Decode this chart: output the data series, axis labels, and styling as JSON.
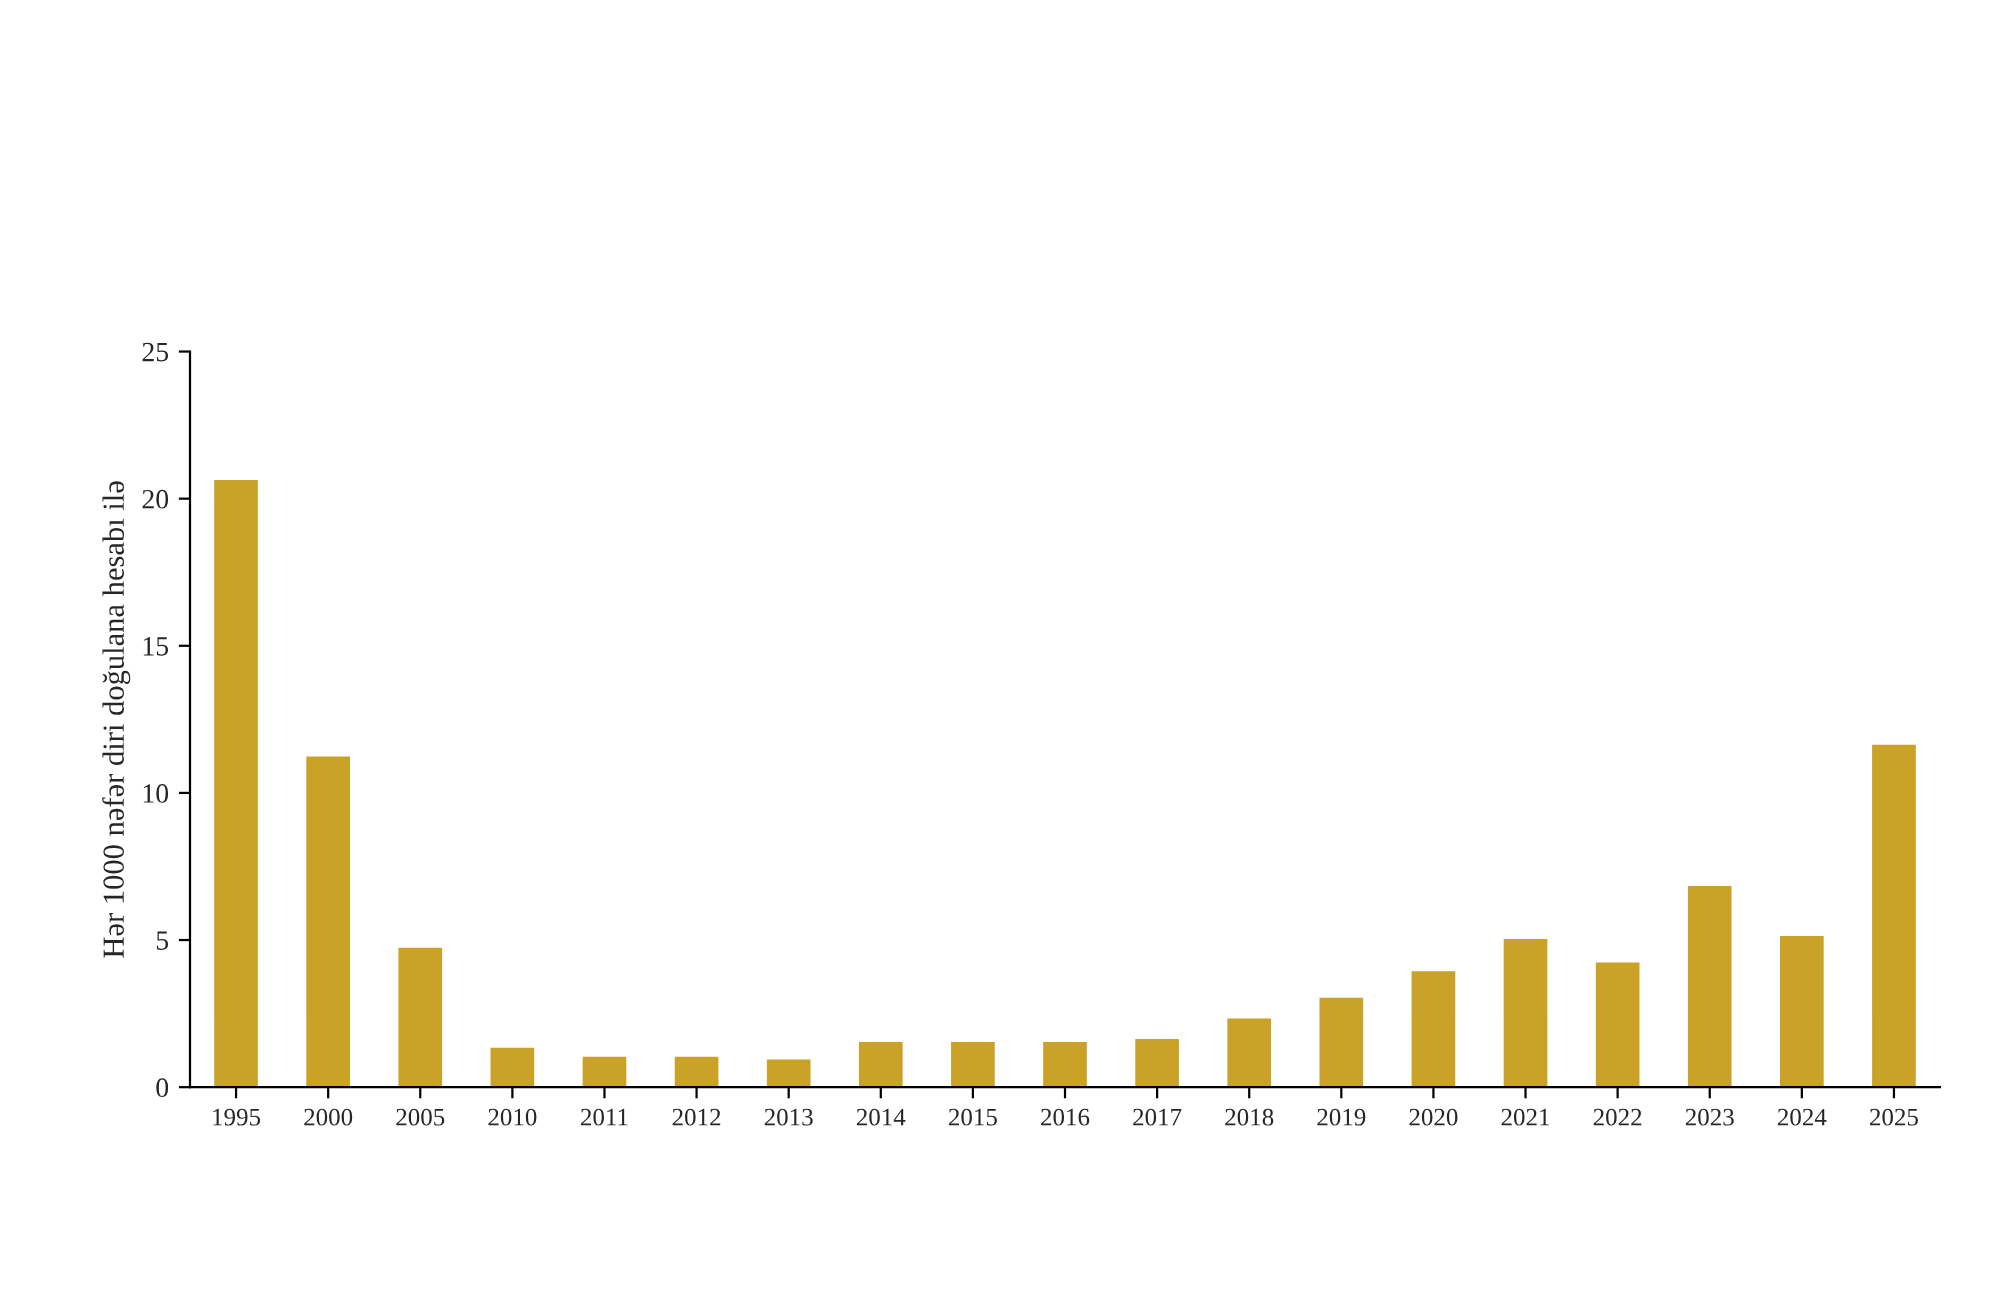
{
  "chart_data": {
    "type": "bar",
    "ylabel": "Hər 1000 nəfər diri doğulana hesabı ilə",
    "categories": [
      "1995",
      "2000",
      "2005",
      "2010",
      "2011",
      "2012",
      "2013",
      "2014",
      "2015",
      "2016",
      "2017",
      "2018",
      "2019",
      "2020",
      "2021",
      "2022",
      "2023",
      "2024",
      "2025"
    ],
    "values": [
      20.6,
      11.2,
      4.7,
      1.3,
      1.0,
      1.0,
      0.9,
      1.5,
      1.5,
      1.5,
      1.6,
      2.3,
      3.0,
      3.9,
      5.0,
      4.2,
      6.8,
      5.1,
      11.6
    ],
    "color": "#c9a227",
    "ylim": [
      0,
      25
    ],
    "yticks": [
      0,
      5,
      10,
      15,
      20,
      25
    ],
    "grid": false
  }
}
